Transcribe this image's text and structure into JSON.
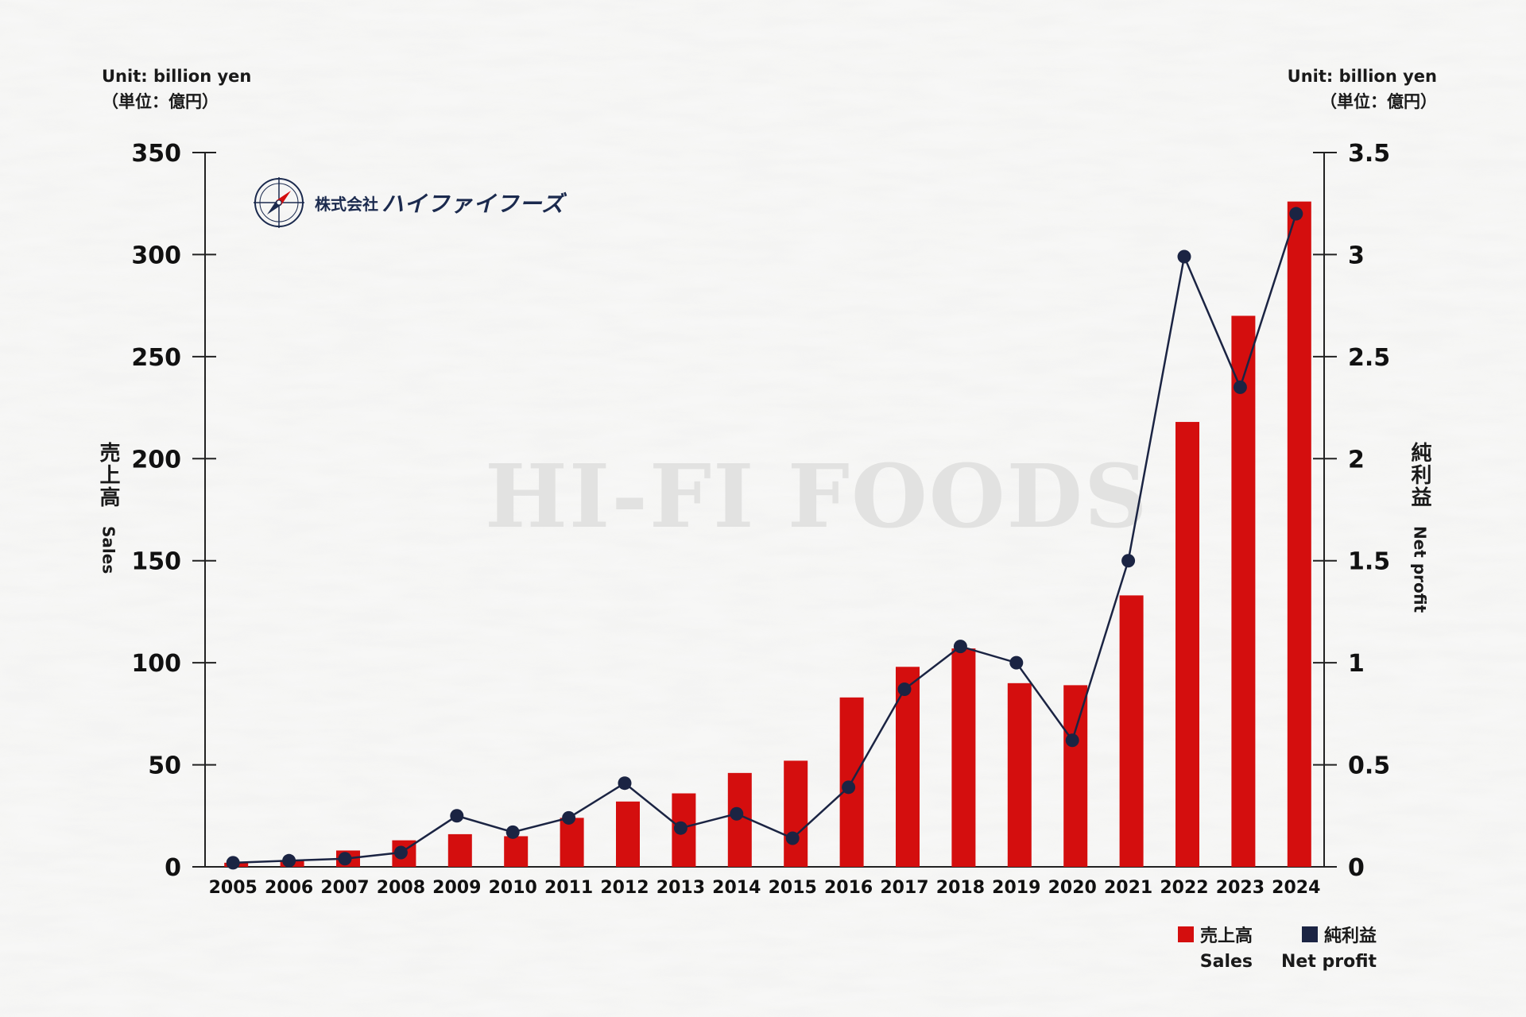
{
  "units": {
    "left_en": "Unit: billion yen",
    "left_jp": "（単位：億円）",
    "right_en": "Unit: billion yen",
    "right_jp": "（単位：億円）"
  },
  "axes": {
    "left_jp": "売上高",
    "left_en": "Sales",
    "right_jp": "純利益",
    "right_en": "Net profit"
  },
  "logo": {
    "company_prefix": "株式会社",
    "company_name": "ハイファイフーズ",
    "emblem_text": "HI-FI FOODS"
  },
  "watermark": "HI-FI FOODS",
  "legend": {
    "sales_jp": "売上高",
    "sales_en": "Sales",
    "profit_jp": "純利益",
    "profit_en": "Net profit"
  },
  "colors": {
    "sales_bar": "#d40e0e",
    "profit_line": "#1b2443",
    "axis": "#222222"
  },
  "chart_data": {
    "type": "bar",
    "categories": [
      "2005",
      "2006",
      "2007",
      "2008",
      "2009",
      "2010",
      "2011",
      "2012",
      "2013",
      "2014",
      "2015",
      "2016",
      "2017",
      "2018",
      "2019",
      "2020",
      "2021",
      "2022",
      "2023",
      "2024"
    ],
    "series": [
      {
        "name": "売上高",
        "axis": "left",
        "type": "bar",
        "values": [
          2,
          3,
          8,
          13,
          16,
          15,
          24,
          32,
          36,
          46,
          52,
          83,
          98,
          107,
          90,
          89,
          133,
          218,
          270,
          326
        ]
      },
      {
        "name": "純利益",
        "axis": "right",
        "type": "line",
        "values": [
          0.02,
          0.03,
          0.04,
          0.07,
          0.25,
          0.17,
          0.24,
          0.41,
          0.19,
          0.26,
          0.14,
          0.39,
          0.87,
          1.08,
          1.0,
          0.62,
          1.5,
          2.99,
          2.35,
          3.2
        ]
      }
    ],
    "y_left": {
      "ylim": [
        0,
        350
      ],
      "ticks": [
        "0",
        "50",
        "100",
        "150",
        "200",
        "250",
        "300",
        "350"
      ]
    },
    "y_right": {
      "ylim": [
        0,
        3.5
      ],
      "ticks": [
        "0",
        "0.5",
        "1",
        "1.5",
        "2",
        "2.5",
        "3",
        "3.5"
      ]
    },
    "legend_position": "bottom-right",
    "grid": false
  }
}
